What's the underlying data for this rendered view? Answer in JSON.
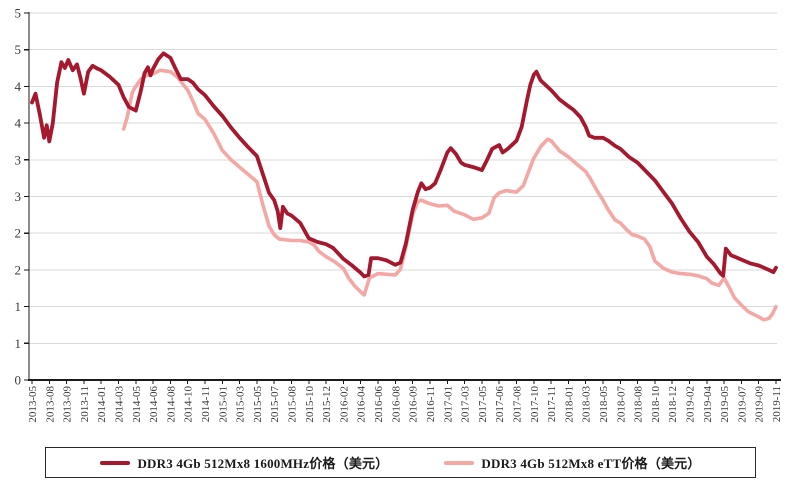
{
  "chart_data": {
    "type": "line",
    "title": "",
    "grid": true,
    "legend_position": "bottom",
    "y_axis": {
      "range": [
        0,
        5
      ],
      "tick_step": 0.5,
      "tick_labels_top_to_bottom": [
        "5",
        "5",
        "4",
        "4",
        "3",
        "3",
        "2",
        "2",
        "1",
        "1",
        "0"
      ]
    },
    "x_axis": {
      "tick_labels": [
        "2013-05",
        "2013-08",
        "2013-09",
        "2013-11",
        "2014-01",
        "2014-03",
        "2014-05",
        "2014-06",
        "2014-08",
        "2014-10",
        "2014-11",
        "2015-01",
        "2015-03",
        "2015-05",
        "2015-07",
        "2015-08",
        "2015-10",
        "2015-12",
        "2016-02",
        "2016-04",
        "2016-06",
        "2016-08",
        "2016-09",
        "2016-11",
        "2017-01",
        "2017-03",
        "2017-05",
        "2017-06",
        "2017-08",
        "2017-10",
        "2017-11",
        "2018-01",
        "2018-03",
        "2018-05",
        "2018-07",
        "2018-08",
        "2018-10",
        "2018-12",
        "2019-02",
        "2019-04",
        "2019-05",
        "2019-07",
        "2019-09",
        "2019-11"
      ]
    },
    "series": [
      {
        "name": "DDR3 4Gb 512Mx8 1600MHz价格（美元）",
        "color": "#A5182E",
        "line_width": 3.8,
        "points": [
          [
            0,
            3.78
          ],
          [
            0.2,
            3.9
          ],
          [
            0.45,
            3.62
          ],
          [
            0.7,
            3.3
          ],
          [
            0.85,
            3.47
          ],
          [
            1,
            3.25
          ],
          [
            1.2,
            3.5
          ],
          [
            1.45,
            4.05
          ],
          [
            1.7,
            4.33
          ],
          [
            1.9,
            4.25
          ],
          [
            2.1,
            4.36
          ],
          [
            2.35,
            4.22
          ],
          [
            2.6,
            4.3
          ],
          [
            2.8,
            4.12
          ],
          [
            3,
            3.9
          ],
          [
            3.25,
            4.2
          ],
          [
            3.5,
            4.28
          ],
          [
            3.8,
            4.24
          ],
          [
            4,
            4.22
          ],
          [
            4.5,
            4.13
          ],
          [
            5,
            4.02
          ],
          [
            5.3,
            3.85
          ],
          [
            5.6,
            3.72
          ],
          [
            6,
            3.67
          ],
          [
            6.3,
            3.95
          ],
          [
            6.5,
            4.18
          ],
          [
            6.7,
            4.26
          ],
          [
            6.85,
            4.15
          ],
          [
            7,
            4.24
          ],
          [
            7.3,
            4.37
          ],
          [
            7.6,
            4.45
          ],
          [
            8,
            4.39
          ],
          [
            8.3,
            4.24
          ],
          [
            8.6,
            4.1
          ],
          [
            9,
            4.1
          ],
          [
            9.3,
            4.05
          ],
          [
            9.6,
            3.96
          ],
          [
            10,
            3.88
          ],
          [
            10.5,
            3.73
          ],
          [
            11,
            3.6
          ],
          [
            11.5,
            3.44
          ],
          [
            12,
            3.3
          ],
          [
            12.5,
            3.17
          ],
          [
            13,
            3.05
          ],
          [
            13.35,
            2.8
          ],
          [
            13.7,
            2.55
          ],
          [
            14,
            2.45
          ],
          [
            14.2,
            2.3
          ],
          [
            14.35,
            2.07
          ],
          [
            14.5,
            2.36
          ],
          [
            14.75,
            2.27
          ],
          [
            15,
            2.24
          ],
          [
            15.5,
            2.14
          ],
          [
            16,
            1.93
          ],
          [
            16.5,
            1.88
          ],
          [
            17,
            1.85
          ],
          [
            17.4,
            1.8
          ],
          [
            18,
            1.65
          ],
          [
            18.5,
            1.56
          ],
          [
            19,
            1.46
          ],
          [
            19.2,
            1.41
          ],
          [
            19.45,
            1.43
          ],
          [
            19.6,
            1.66
          ],
          [
            20,
            1.66
          ],
          [
            20.5,
            1.63
          ],
          [
            21,
            1.57
          ],
          [
            21.3,
            1.6
          ],
          [
            21.6,
            1.85
          ],
          [
            22,
            2.32
          ],
          [
            22.3,
            2.56
          ],
          [
            22.5,
            2.68
          ],
          [
            22.75,
            2.6
          ],
          [
            23,
            2.62
          ],
          [
            23.3,
            2.68
          ],
          [
            23.6,
            2.85
          ],
          [
            24,
            3.1
          ],
          [
            24.2,
            3.16
          ],
          [
            24.5,
            3.08
          ],
          [
            24.8,
            2.96
          ],
          [
            25,
            2.93
          ],
          [
            25.5,
            2.9
          ],
          [
            26,
            2.86
          ],
          [
            26.3,
            3.0
          ],
          [
            26.6,
            3.15
          ],
          [
            27,
            3.2
          ],
          [
            27.2,
            3.1
          ],
          [
            27.5,
            3.15
          ],
          [
            28,
            3.26
          ],
          [
            28.3,
            3.45
          ],
          [
            28.6,
            3.8
          ],
          [
            28.8,
            4.02
          ],
          [
            29,
            4.16
          ],
          [
            29.15,
            4.2
          ],
          [
            29.4,
            4.08
          ],
          [
            30,
            3.95
          ],
          [
            30.5,
            3.82
          ],
          [
            31,
            3.73
          ],
          [
            31.3,
            3.68
          ],
          [
            31.7,
            3.58
          ],
          [
            32,
            3.45
          ],
          [
            32.2,
            3.33
          ],
          [
            32.5,
            3.3
          ],
          [
            33,
            3.3
          ],
          [
            33.3,
            3.26
          ],
          [
            33.7,
            3.19
          ],
          [
            34,
            3.15
          ],
          [
            34.5,
            3.04
          ],
          [
            35,
            2.96
          ],
          [
            35.5,
            2.84
          ],
          [
            36,
            2.72
          ],
          [
            36.5,
            2.56
          ],
          [
            37,
            2.4
          ],
          [
            37.5,
            2.2
          ],
          [
            38,
            2.02
          ],
          [
            38.5,
            1.88
          ],
          [
            39,
            1.68
          ],
          [
            39.4,
            1.58
          ],
          [
            39.8,
            1.45
          ],
          [
            39.95,
            1.42
          ],
          [
            40.1,
            1.79
          ],
          [
            40.4,
            1.7
          ],
          [
            40.7,
            1.67
          ],
          [
            41,
            1.64
          ],
          [
            41.5,
            1.59
          ],
          [
            42,
            1.56
          ],
          [
            42.5,
            1.51
          ],
          [
            42.85,
            1.47
          ],
          [
            43,
            1.53
          ]
        ]
      },
      {
        "name": "DDR3 4Gb 512Mx8 eTT价格（美元）",
        "color": "#F5A7A4",
        "line_width": 3.6,
        "points": [
          [
            5.3,
            3.42
          ],
          [
            5.5,
            3.58
          ],
          [
            5.8,
            3.92
          ],
          [
            6,
            4.0
          ],
          [
            6.3,
            4.1
          ],
          [
            6.6,
            4.15
          ],
          [
            7,
            4.17
          ],
          [
            7.4,
            4.22
          ],
          [
            8,
            4.2
          ],
          [
            8.4,
            4.13
          ],
          [
            8.7,
            4.04
          ],
          [
            9,
            3.95
          ],
          [
            9.3,
            3.8
          ],
          [
            9.6,
            3.63
          ],
          [
            10,
            3.55
          ],
          [
            10.5,
            3.36
          ],
          [
            11,
            3.13
          ],
          [
            11.5,
            3.0
          ],
          [
            12,
            2.9
          ],
          [
            12.5,
            2.8
          ],
          [
            13,
            2.7
          ],
          [
            13.35,
            2.38
          ],
          [
            13.7,
            2.1
          ],
          [
            14,
            1.98
          ],
          [
            14.3,
            1.92
          ],
          [
            15,
            1.9
          ],
          [
            15.5,
            1.9
          ],
          [
            16,
            1.88
          ],
          [
            16.3,
            1.84
          ],
          [
            16.6,
            1.75
          ],
          [
            17,
            1.68
          ],
          [
            17.5,
            1.61
          ],
          [
            18,
            1.52
          ],
          [
            18.3,
            1.39
          ],
          [
            18.65,
            1.28
          ],
          [
            19,
            1.2
          ],
          [
            19.2,
            1.16
          ],
          [
            19.5,
            1.39
          ],
          [
            20,
            1.45
          ],
          [
            20.5,
            1.44
          ],
          [
            21,
            1.43
          ],
          [
            21.3,
            1.51
          ],
          [
            21.6,
            1.8
          ],
          [
            22,
            2.26
          ],
          [
            22.3,
            2.43
          ],
          [
            22.5,
            2.45
          ],
          [
            23,
            2.4
          ],
          [
            23.5,
            2.37
          ],
          [
            24,
            2.38
          ],
          [
            24.4,
            2.3
          ],
          [
            25,
            2.25
          ],
          [
            25.5,
            2.19
          ],
          [
            26,
            2.21
          ],
          [
            26.4,
            2.27
          ],
          [
            26.7,
            2.48
          ],
          [
            27,
            2.55
          ],
          [
            27.4,
            2.58
          ],
          [
            28,
            2.56
          ],
          [
            28.4,
            2.65
          ],
          [
            28.8,
            2.9
          ],
          [
            29,
            3.02
          ],
          [
            29.4,
            3.18
          ],
          [
            29.8,
            3.28
          ],
          [
            30,
            3.26
          ],
          [
            30.5,
            3.12
          ],
          [
            31,
            3.04
          ],
          [
            31.5,
            2.94
          ],
          [
            32,
            2.84
          ],
          [
            32.3,
            2.73
          ],
          [
            32.6,
            2.6
          ],
          [
            33,
            2.45
          ],
          [
            33.3,
            2.32
          ],
          [
            33.7,
            2.18
          ],
          [
            34,
            2.14
          ],
          [
            34.4,
            2.04
          ],
          [
            34.7,
            1.98
          ],
          [
            35,
            1.96
          ],
          [
            35.4,
            1.92
          ],
          [
            35.7,
            1.82
          ],
          [
            36,
            1.62
          ],
          [
            36.5,
            1.52
          ],
          [
            37,
            1.47
          ],
          [
            37.5,
            1.45
          ],
          [
            38,
            1.44
          ],
          [
            38.5,
            1.42
          ],
          [
            39,
            1.38
          ],
          [
            39.3,
            1.32
          ],
          [
            39.7,
            1.29
          ],
          [
            40,
            1.39
          ],
          [
            40.3,
            1.26
          ],
          [
            40.6,
            1.12
          ],
          [
            41,
            1.02
          ],
          [
            41.4,
            0.93
          ],
          [
            42,
            0.86
          ],
          [
            42.3,
            0.82
          ],
          [
            42.6,
            0.84
          ],
          [
            42.8,
            0.9
          ],
          [
            43,
            1.0
          ]
        ]
      }
    ]
  },
  "legend": {
    "items": [
      {
        "label": "DDR3 4Gb 512Mx8 1600MHz价格（美元）"
      },
      {
        "label": "DDR3 4Gb 512Mx8 eTT价格（美元）"
      }
    ]
  },
  "colors": {
    "background": "#FFFFFF",
    "grid": "#DADADA",
    "axis": "#1A1A1A",
    "tick_label": "#3A3A3A",
    "legend_border": "#2B2B2B"
  }
}
